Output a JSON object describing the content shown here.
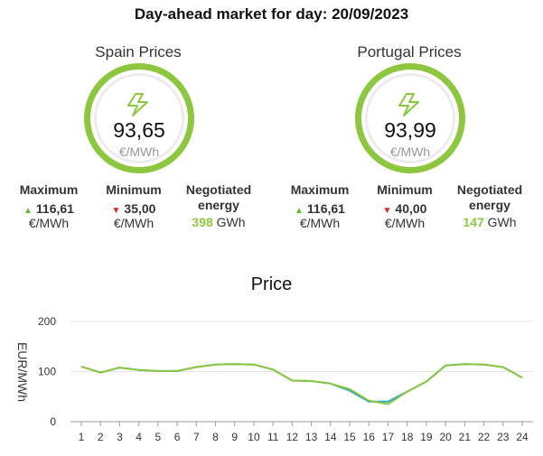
{
  "header": {
    "title": "Day-ahead market for day: 20/09/2023"
  },
  "panels": {
    "spain": {
      "title": "Spain Prices",
      "price": "93,65",
      "unit": "€/MWh",
      "max_label": "Maximum",
      "max_value": "116,61",
      "max_unit": "€/MWh",
      "min_label": "Minimum",
      "min_value": "35,00",
      "min_unit": "€/MWh",
      "energy_label_1": "Negotiated",
      "energy_label_2": "energy",
      "energy_value": "398",
      "energy_unit": "GWh"
    },
    "portugal": {
      "title": "Portugal Prices",
      "price": "93,99",
      "unit": "€/MWh",
      "max_label": "Maximum",
      "max_value": "116,61",
      "max_unit": "€/MWh",
      "min_label": "Minimum",
      "min_value": "40,00",
      "min_unit": "€/MWh",
      "energy_label_1": "Negotiated",
      "energy_label_2": "energy",
      "energy_value": "147",
      "energy_unit": "GWh"
    }
  },
  "colors": {
    "accent": "#8dc63f",
    "up": "#5cb82e",
    "down": "#e02020",
    "series_a": "#8dc63f",
    "series_b": "#29a8c8"
  },
  "icons": {
    "price": "lightning-bolt-icon",
    "max": "triangle-up-icon",
    "min": "triangle-down-icon"
  },
  "chart_data": {
    "type": "line",
    "title": "Price",
    "xlabel": "",
    "ylabel": "EUR/MWh",
    "ylim": [
      0,
      200
    ],
    "yticks": [
      0,
      100,
      200
    ],
    "grid": true,
    "x": [
      1,
      2,
      3,
      4,
      5,
      6,
      7,
      8,
      9,
      10,
      11,
      12,
      13,
      14,
      15,
      16,
      17,
      18,
      19,
      20,
      21,
      22,
      23,
      24
    ],
    "series": [
      {
        "values": [
          110,
          98,
          108,
          103,
          101,
          101,
          109,
          114,
          115,
          114,
          104,
          82,
          81,
          76,
          62,
          40,
          40,
          60,
          80,
          112,
          115,
          114,
          109,
          88
        ]
      },
      {
        "values": [
          110,
          98,
          108,
          103,
          101,
          101,
          109,
          114,
          115,
          114,
          104,
          82,
          81,
          76,
          65,
          42,
          35,
          60,
          80,
          112,
          115,
          114,
          109,
          88
        ]
      }
    ]
  }
}
